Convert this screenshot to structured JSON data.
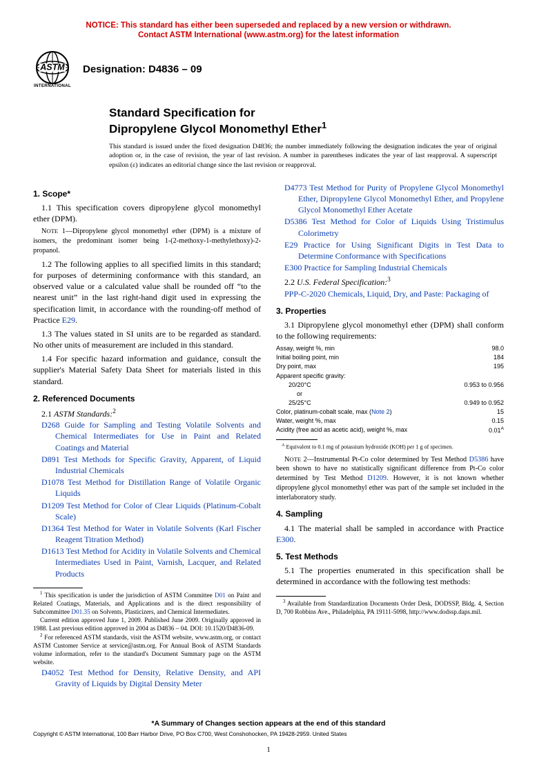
{
  "colors": {
    "notice": "#d00000",
    "link": "#0b3db0",
    "text": "#000000",
    "background": "#ffffff"
  },
  "notice": {
    "line1": "NOTICE: This standard has either been superseded and replaced by a new version or withdrawn.",
    "line2": "Contact ASTM International (www.astm.org) for the latest information"
  },
  "logo": {
    "caption": "INTERNATIONAL"
  },
  "designation": "Designation: D4836 – 09",
  "title": {
    "line1": "Standard Specification for",
    "line2": "Dipropylene Glycol Monomethyl Ether"
  },
  "issue_note": "This standard is issued under the fixed designation D4836; the number immediately following the designation indicates the year of original adoption or, in the case of revision, the year of last revision. A number in parentheses indicates the year of last reapproval. A superscript epsilon (ε) indicates an editorial change since the last revision or reapproval.",
  "s1": {
    "head": "1. Scope*",
    "p1": "1.1 This specification covers dipropylene glycol monomethyl ether (DPM).",
    "note1": "NOTE 1—Dipropylene glycol monomethyl ether (DPM) is a mixture of isomers, the predominant isomer being 1-(2-methoxy-1-methylethoxy)-2-propanol.",
    "p2a": "1.2 The following applies to all specified limits in this standard; for purposes of determining conformance with this standard, an observed value or a calculated value shall be rounded off “to the nearest unit” in the last right-hand digit used in expressing the specification limit, in accordance with the rounding-off method of Practice ",
    "p2link": "E29",
    "p2b": ".",
    "p3": "1.3 The values stated in SI units are to be regarded as standard. No other units of measurement are included in this standard.",
    "p4": "1.4 For specific hazard information and guidance, consult the supplier's Material Safety Data Sheet for materials listed in this standard."
  },
  "s2": {
    "head": "2. Referenced Documents",
    "sub1": {
      "num": "2.1 ",
      "title": "ASTM Standards:"
    },
    "refs": [
      {
        "code": "D268",
        "text": " Guide for Sampling and Testing Volatile Solvents and Chemical Intermediates for Use in Paint and Related Coatings and Material"
      },
      {
        "code": "D891",
        "text": " Test Methods for Specific Gravity, Apparent, of Liquid Industrial Chemicals"
      },
      {
        "code": "D1078",
        "text": " Test Method for Distillation Range of Volatile Organic Liquids"
      },
      {
        "code": "D1209",
        "text": " Test Method for Color of Clear Liquids (Platinum-Cobalt Scale)"
      },
      {
        "code": "D1364",
        "text": " Test Method for Water in Volatile Solvents (Karl Fischer Reagent Titration Method)"
      },
      {
        "code": "D1613",
        "text": " Test Method for Acidity in Volatile Solvents and Chemical Intermediates Used in Paint, Varnish, Lacquer, and Related Products"
      },
      {
        "code": "D4052",
        "text": " Test Method for Density, Relative Density, and API Gravity of Liquids by Digital Density Meter"
      },
      {
        "code": "D4773",
        "text": " Test Method for Purity of Propylene Glycol Monomethyl Ether, Dipropylene Glycol Monomethyl Ether, and Propylene Glycol Monomethyl Ether Acetate"
      },
      {
        "code": "D5386",
        "text": " Test Method for Color of Liquids Using Tristimulus Colorimetry"
      },
      {
        "code": "E29",
        "text": " Practice for Using Significant Digits in Test Data to Determine Conformance with Specifications"
      },
      {
        "code": "E300",
        "text": " Practice for Sampling Industrial Chemicals"
      }
    ],
    "sub2": {
      "num": "2.2 ",
      "title": "U.S. Federal Specification:"
    },
    "fed": {
      "code": "PPP-C-2020",
      "text": " Chemicals, Liquid, Dry, and Paste: Packaging of"
    }
  },
  "s3": {
    "head": "3. Properties",
    "p1": "3.1 Dipropylene glycol monomethyl ether (DPM) shall conform to the following requirements:",
    "table": {
      "rows": [
        {
          "label": "Assay, weight %, min",
          "value": "98.0",
          "indent": 0
        },
        {
          "label": "Initial boiling point, min",
          "value": "184",
          "indent": 0
        },
        {
          "label": "Dry point, max",
          "value": "195",
          "indent": 0
        },
        {
          "label": "Apparent specific gravity:",
          "value": "",
          "indent": 0
        },
        {
          "label": "20/20°C",
          "value": "0.953 to 0.956",
          "indent": 1
        },
        {
          "label": "or",
          "value": "",
          "indent": 2
        },
        {
          "label": "25/25°C",
          "value": "0.949 to 0.952",
          "indent": 1
        },
        {
          "label": "Color, platinum-cobalt scale, max (Note 2)",
          "value": "15",
          "indent": 0,
          "note_link": "Note 2"
        },
        {
          "label": "Water, weight %, max",
          "value": "0.15",
          "indent": 0
        },
        {
          "label": "Acidity (free acid as acetic acid), weight %, max",
          "value": "0.01",
          "indent": 0,
          "sup": "A"
        }
      ],
      "footnote_a": "Equivalent to 0.1 mg of potassium hydroxide (KOH) per 1 g of specimen."
    },
    "note2a": "NOTE 2—Instrumental Pt-Co color determined by Test Method ",
    "note2l1": "D5386",
    "note2b": " have been shown to have no statistically significant difference from Pt-Co color determined by Test Method ",
    "note2l2": "D1209",
    "note2c": ". However, it is not known whether dipropylene glycol monomethyl ether was part of the sample set included in the interlaboratory study."
  },
  "s4": {
    "head": "4. Sampling",
    "p1a": "4.1 The material shall be sampled in accordance with Practice ",
    "p1link": "E300",
    "p1b": "."
  },
  "s5": {
    "head": "5. Test Methods",
    "p1": "5.1 The properties enumerated in this specification shall be determined in accordance with the following test methods:"
  },
  "footnotes": {
    "f1a": " This specification is under the jurisdiction of ASTM Committee ",
    "f1l1": "D01",
    "f1b": " on Paint and Related Coatings, Materials, and Applications and is the direct responsibility of Subcommittee ",
    "f1l2": "D01.35",
    "f1c": " on Solvents, Plasticizers, and Chemical Intermediates.",
    "f1d": "Current edition approved June 1, 2009. Published June 2009. Originally approved in 1988. Last previous edition approved in 2004 as D4836 – 04. DOI: 10.1520/D4836-09.",
    "f2": " For referenced ASTM standards, visit the ASTM website, www.astm.org, or contact ASTM Customer Service at service@astm.org. For Annual Book of ASTM Standards volume information, refer to the standard's Document Summary page on the ASTM website.",
    "f3": " Available from Standardization Documents Order Desk, DODSSP, Bldg. 4, Section D, 700 Robbins Ave., Philadelphia, PA 19111-5098, http://www.dodssp.daps.mil."
  },
  "summary_line": "*A Summary of Changes section appears at the end of this standard",
  "copyright": "Copyright © ASTM International, 100 Barr Harbor Drive, PO Box C700, West Conshohocken, PA 19428-2959. United States",
  "page_number": "1"
}
